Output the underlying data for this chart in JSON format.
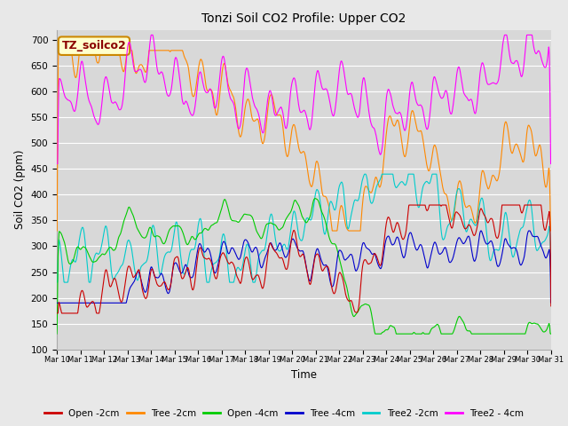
{
  "title": "Tonzi Soil CO2 Profile: Upper CO2",
  "xlabel": "Time",
  "ylabel": "Soil CO2 (ppm)",
  "ylim": [
    100,
    720
  ],
  "yticks": [
    100,
    150,
    200,
    250,
    300,
    350,
    400,
    450,
    500,
    550,
    600,
    650,
    700
  ],
  "legend_label": "TZ_soilco2",
  "series_colors": {
    "Open -2cm": "#cc0000",
    "Tree -2cm": "#ff8800",
    "Open -4cm": "#00cc00",
    "Tree -4cm": "#0000cc",
    "Tree2 -2cm": "#00cccc",
    "Tree2 - 4cm": "#ff00ff"
  },
  "fig_facecolor": "#e8e8e8",
  "ax_facecolor": "#d8d8d8",
  "n_points": 2000
}
